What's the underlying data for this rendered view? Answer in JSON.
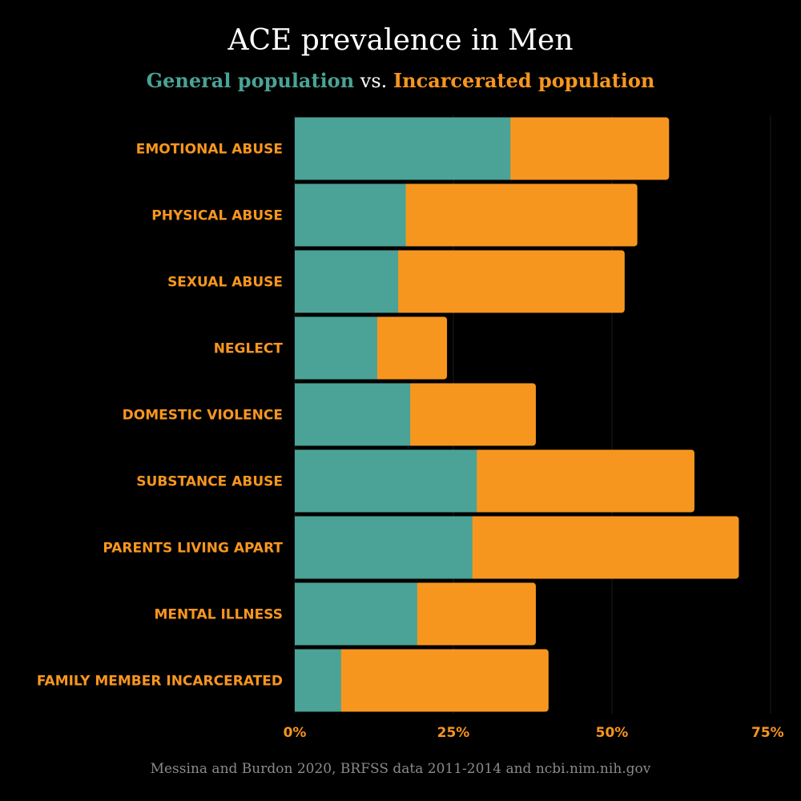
{
  "title": "ACE prevalence in Men",
  "subtitle": {
    "general_label": "General population",
    "separator": "vs.",
    "incarcerated_label": "Incarcerated population"
  },
  "source": "Messina and Burdon 2020, BRFSS data 2011-2014 and ncbi.nim.nih.gov",
  "colors": {
    "background": "#000000",
    "general": "#4aa396",
    "incarcerated": "#f7961f",
    "label": "#f7961f",
    "title": "#ffffff",
    "source": "#8a8a8a",
    "grid": "#1c1c1c"
  },
  "chart_data": {
    "type": "bar",
    "orientation": "horizontal",
    "stacking": "overlay",
    "categories": [
      "EMOTIONAL ABUSE",
      "PHYSICAL ABUSE",
      "SEXUAL ABUSE",
      "NEGLECT",
      "DOMESTIC VIOLENCE",
      "SUBSTANCE ABUSE",
      "PARENTS LIVING APART",
      "MENTAL ILLNESS",
      "FAMILY MEMBER INCARCERATED"
    ],
    "series": [
      {
        "name": "Incarcerated population",
        "color": "#f7961f",
        "values": [
          59,
          54,
          52,
          24,
          38,
          63,
          70,
          38,
          40
        ]
      },
      {
        "name": "General population",
        "color": "#4aa396",
        "values": [
          34,
          17.5,
          16.3,
          13,
          18.2,
          28.7,
          28,
          19.3,
          7.3
        ]
      }
    ],
    "xlim": [
      0,
      75
    ],
    "xticks": [
      0,
      25,
      50,
      75
    ],
    "xtick_labels": [
      "0%",
      "25%",
      "50%",
      "75%"
    ],
    "grid": true,
    "xlabel": "",
    "ylabel": ""
  }
}
